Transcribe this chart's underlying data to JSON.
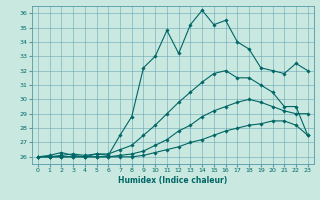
{
  "xlabel": "Humidex (Indice chaleur)",
  "bg_color": "#c8e8e0",
  "grid_color": "#5599aa",
  "line_color": "#006666",
  "xlim": [
    -0.5,
    23.5
  ],
  "ylim": [
    25.5,
    36.5
  ],
  "xticks": [
    0,
    1,
    2,
    3,
    4,
    5,
    6,
    7,
    8,
    9,
    10,
    11,
    12,
    13,
    14,
    15,
    16,
    17,
    18,
    19,
    20,
    21,
    22,
    23
  ],
  "yticks": [
    26,
    27,
    28,
    29,
    30,
    31,
    32,
    33,
    34,
    35,
    36
  ],
  "line_main_x": [
    0,
    1,
    2,
    3,
    4,
    5,
    6,
    7,
    8,
    9,
    10,
    11,
    12,
    13,
    14,
    15,
    16,
    17,
    18,
    19,
    20,
    21,
    22,
    23
  ],
  "line_main_y": [
    26.0,
    26.1,
    26.3,
    26.1,
    26.0,
    26.2,
    26.1,
    27.5,
    28.8,
    32.2,
    33.0,
    34.8,
    33.2,
    35.2,
    36.2,
    35.2,
    35.5,
    34.0,
    33.5,
    32.2,
    32.0,
    31.8,
    32.5,
    32.0
  ],
  "line_b_x": [
    0,
    1,
    2,
    3,
    4,
    5,
    6,
    7,
    8,
    9,
    10,
    11,
    12,
    13,
    14,
    15,
    16,
    17,
    18,
    19,
    20,
    21,
    22,
    23
  ],
  "line_b_y": [
    26.0,
    26.0,
    26.1,
    26.2,
    26.1,
    26.2,
    26.2,
    26.5,
    26.8,
    27.5,
    28.2,
    29.0,
    29.8,
    30.5,
    31.2,
    31.8,
    32.0,
    31.5,
    31.5,
    31.0,
    30.5,
    29.5,
    29.5,
    27.5
  ],
  "line_c_x": [
    0,
    1,
    2,
    3,
    4,
    5,
    6,
    7,
    8,
    9,
    10,
    11,
    12,
    13,
    14,
    15,
    16,
    17,
    18,
    19,
    20,
    21,
    22,
    23
  ],
  "line_c_y": [
    26.0,
    26.0,
    26.0,
    26.0,
    26.0,
    26.0,
    26.0,
    26.1,
    26.2,
    26.4,
    26.8,
    27.2,
    27.8,
    28.2,
    28.8,
    29.2,
    29.5,
    29.8,
    30.0,
    29.8,
    29.5,
    29.2,
    29.0,
    29.0
  ],
  "line_d_x": [
    0,
    1,
    2,
    3,
    4,
    5,
    6,
    7,
    8,
    9,
    10,
    11,
    12,
    13,
    14,
    15,
    16,
    17,
    18,
    19,
    20,
    21,
    22,
    23
  ],
  "line_d_y": [
    26.0,
    26.0,
    26.0,
    26.0,
    26.0,
    26.0,
    26.0,
    26.0,
    26.0,
    26.1,
    26.3,
    26.5,
    26.7,
    27.0,
    27.2,
    27.5,
    27.8,
    28.0,
    28.2,
    28.3,
    28.5,
    28.5,
    28.2,
    27.5
  ]
}
